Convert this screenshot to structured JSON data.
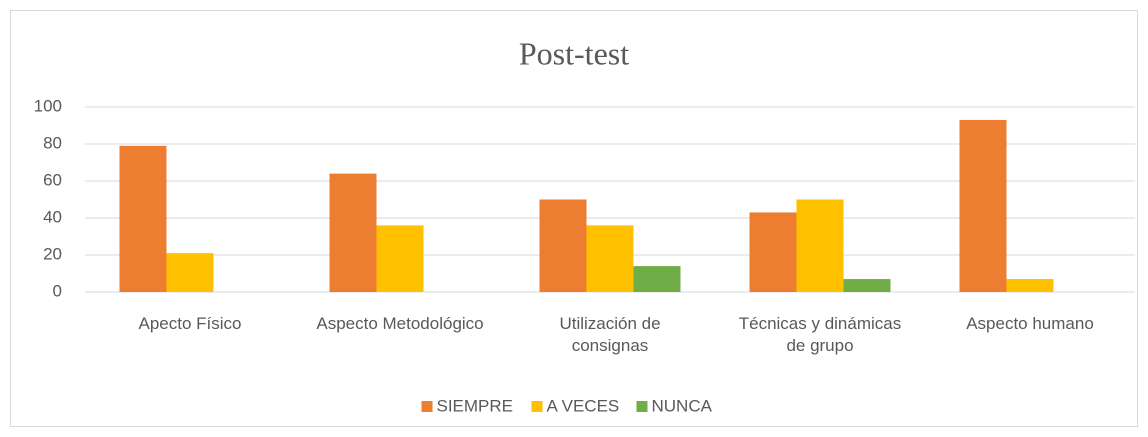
{
  "chart_data": {
    "type": "bar",
    "title": "Post-test",
    "categories": [
      "Apecto Físico",
      "Aspecto Metodológico",
      "Utilización de consignas",
      "Técnicas y dinámicas de grupo",
      "Aspecto humano"
    ],
    "series": [
      {
        "name": "SIEMPRE",
        "color": "#ed7d31",
        "values": [
          79,
          64,
          50,
          43,
          93
        ]
      },
      {
        "name": "A VECES",
        "color": "#ffc000",
        "values": [
          21,
          36,
          36,
          50,
          7
        ]
      },
      {
        "name": "NUNCA",
        "color": "#70ad47",
        "values": [
          0,
          0,
          14,
          7,
          0
        ]
      }
    ],
    "ylim": [
      0,
      100
    ],
    "yticks": [
      0,
      20,
      40,
      60,
      80,
      100
    ],
    "grid": true,
    "legend": "bottom"
  }
}
